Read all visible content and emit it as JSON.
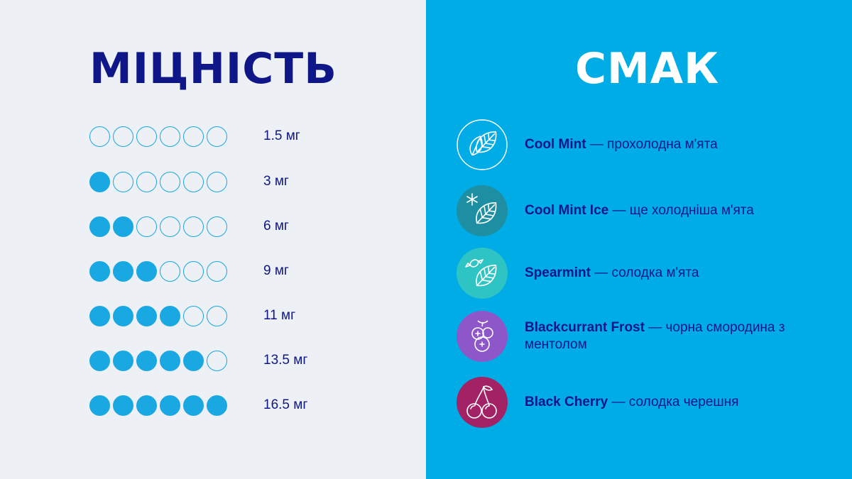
{
  "strength": {
    "title": "МІЦНІСТЬ",
    "levels": [
      {
        "label": "1.5 мг",
        "filled": 0,
        "total": 6
      },
      {
        "label": "3 мг",
        "filled": 1,
        "total": 6
      },
      {
        "label": "6 мг",
        "filled": 2,
        "total": 6
      },
      {
        "label": "9 мг",
        "filled": 3,
        "total": 6
      },
      {
        "label": "11 мг",
        "filled": 4,
        "total": 6
      },
      {
        "label": "13.5 мг",
        "filled": 5,
        "total": 6
      },
      {
        "label": "16.5 мг",
        "filled": 6,
        "total": 6
      }
    ]
  },
  "flavor": {
    "title": "СМАК",
    "items": [
      {
        "name": "Cool Mint",
        "desc": " — прохолодна м'ята",
        "icon": "mint-leaf-icon",
        "color": "#00ace6"
      },
      {
        "name": "Cool Mint Ice",
        "desc": " — ще холодніша м'ята",
        "icon": "mint-leaf-snowflake-icon",
        "color": "#1e8fa3"
      },
      {
        "name": "Spearmint",
        "desc": " — солодка м'ята",
        "icon": "mint-leaf-candy-icon",
        "color": "#2fc4c4"
      },
      {
        "name": "Blackcurrant Frost",
        "desc": " — чорна смородина з ментолом",
        "icon": "blackcurrant-icon",
        "color": "#8e57c9"
      },
      {
        "name": "Black Cherry",
        "desc": " — солодка черешня",
        "icon": "cherry-icon",
        "color": "#a32266"
      }
    ]
  },
  "colors": {
    "left_bg": "#edf0f5",
    "right_bg": "#00ace6",
    "navy": "#0f1788",
    "dot_blue": "#1aa8e2"
  }
}
